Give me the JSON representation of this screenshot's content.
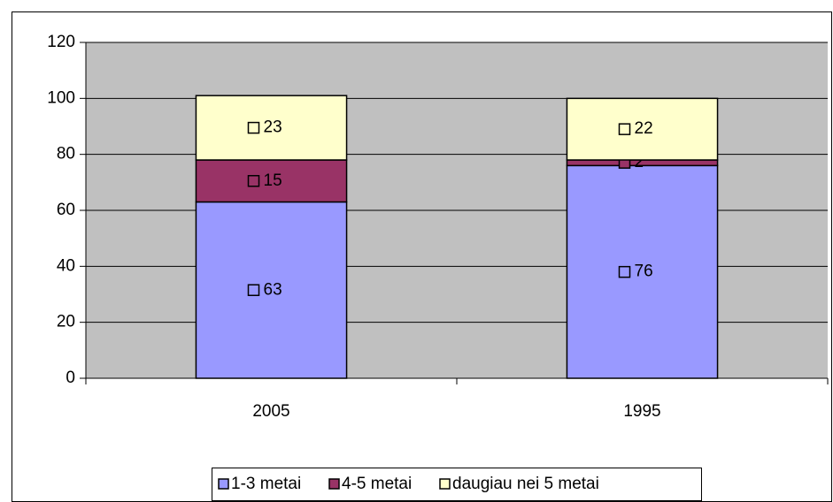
{
  "chart_data": {
    "type": "stacked_bar",
    "categories": [
      "2005",
      "1995"
    ],
    "series": [
      {
        "name": "1-3 metai",
        "color": "#9999ff",
        "values": [
          63,
          76
        ]
      },
      {
        "name": "4-5 metai",
        "color": "#993366",
        "values": [
          15,
          2
        ]
      },
      {
        "name": "daugiau nei 5 metai",
        "color": "#ffffcc",
        "values": [
          23,
          22
        ]
      }
    ],
    "ylim": [
      0,
      120
    ],
    "yticks": [
      0,
      20,
      40,
      60,
      80,
      100,
      120
    ],
    "grid": true,
    "legend": "bottom"
  }
}
